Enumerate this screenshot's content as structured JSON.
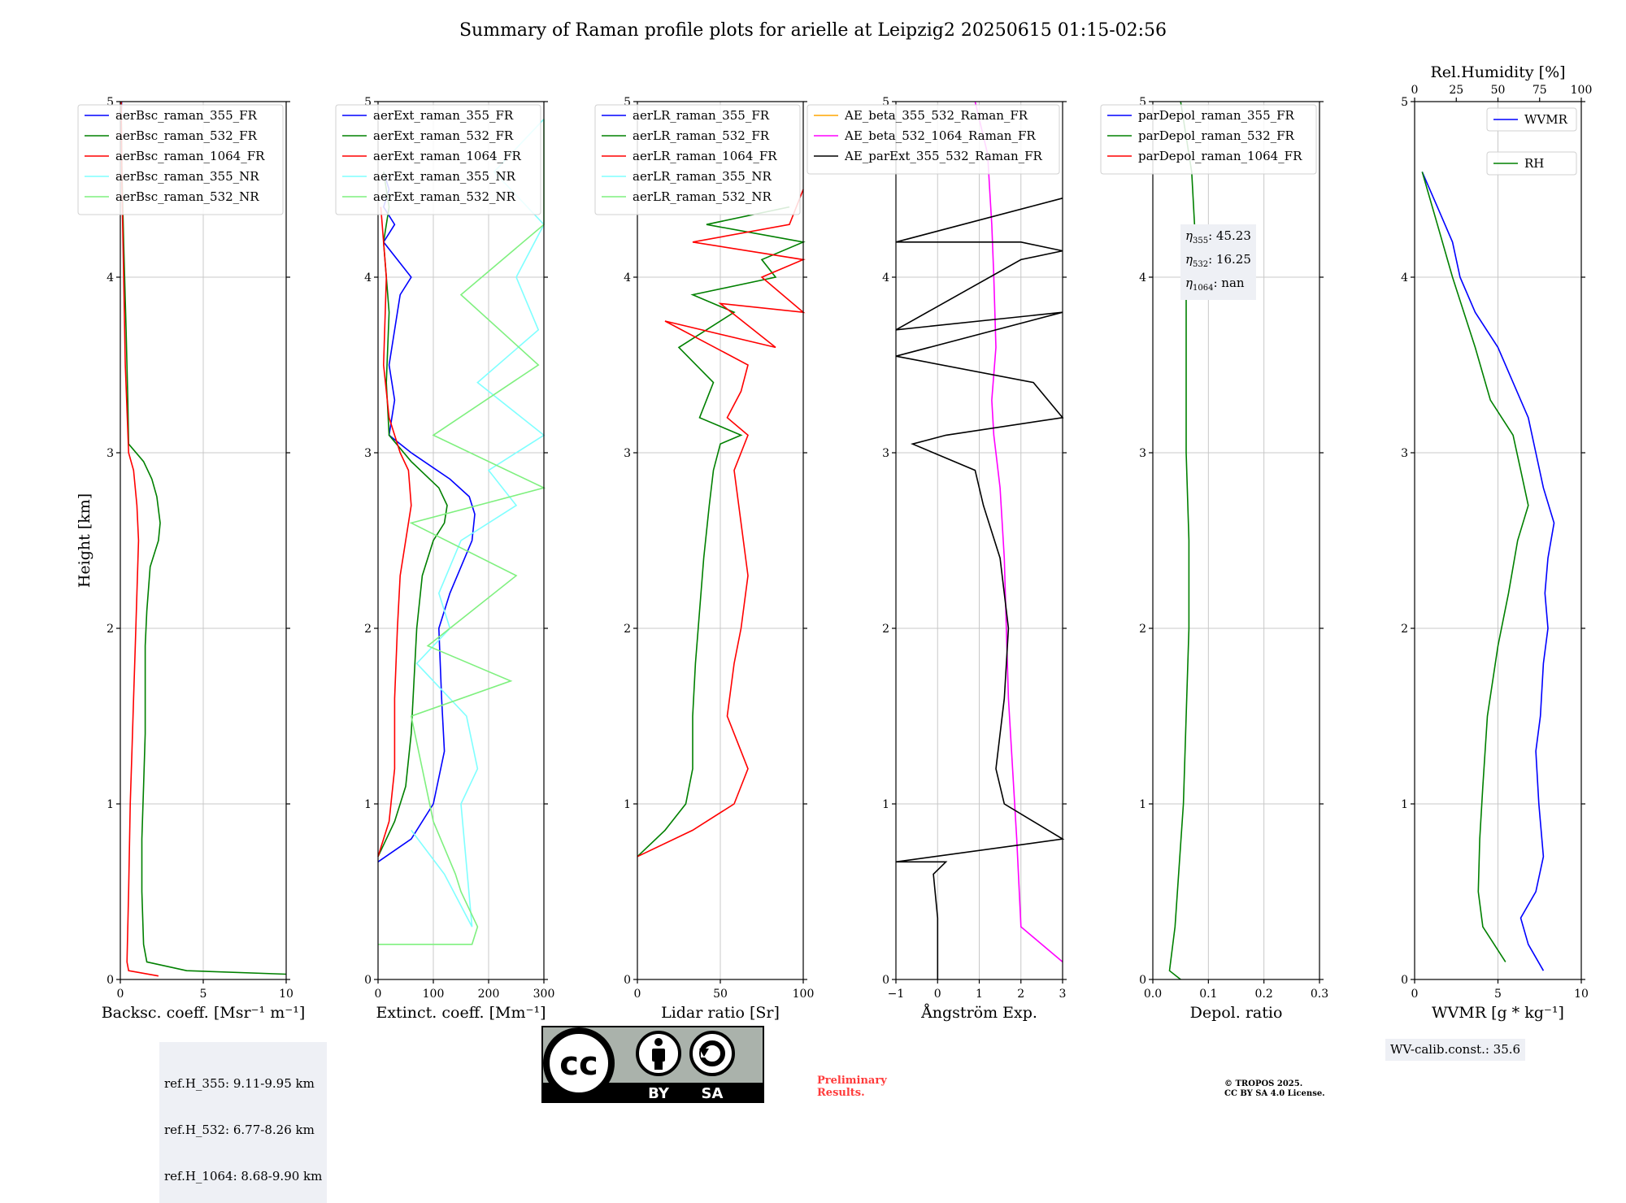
{
  "title": "Summary of Raman profile plots for arielle at Leipzig2 20250615 01:15-02:56",
  "info": {
    "refH": [
      "ref.H_355: 9.11-9.95 km",
      "ref.H_532: 6.77-8.26 km",
      "ref.H_1064: 8.68-9.90 km"
    ],
    "eta": {
      "e355": "45.23",
      "e532": "16.25",
      "e1064": "nan"
    },
    "wv_calib": "WV-calib.const.: 35.6",
    "preliminary": [
      "Preliminary",
      "Results."
    ],
    "copyright": [
      "© TROPOS 2025.",
      "CC BY SA 4.0 License."
    ],
    "cc_logo": {
      "cc": "cc",
      "by": "BY",
      "sa": "SA"
    }
  },
  "colors": {
    "blue": "#0000ff",
    "green": "#008000",
    "red": "#ff0000",
    "cyan": "#7fffff",
    "lightgreen": "#7ff07f",
    "orange": "#ffa500",
    "magenta": "#ff00ff",
    "black": "#000000"
  },
  "chart_data": [
    {
      "type": "line",
      "xlabel": "Backsc. coeff. [Msr⁻¹ m⁻¹]",
      "ylabel": "Height [km]",
      "xlim": [
        0,
        10
      ],
      "ylim": [
        0,
        5
      ],
      "xticks": [
        "0",
        "5",
        "10"
      ],
      "yticks": [
        "0",
        "1",
        "2",
        "3",
        "4",
        "5"
      ],
      "grid": true,
      "legend": "top-right",
      "series": [
        {
          "name": "aerBsc_raman_355_FR",
          "color": "#0000ff",
          "x": [
            0.05,
            0.06,
            0.08
          ],
          "y": [
            4.8,
            4.9,
            5.0
          ]
        },
        {
          "name": "aerBsc_raman_532_FR",
          "color": "#008000",
          "x": [
            10,
            4,
            1.6,
            1.4,
            1.3,
            1.3,
            1.4,
            1.5,
            1.5,
            1.5,
            1.6,
            1.8,
            2.3,
            2.4,
            2.2,
            1.9,
            1.4,
            0.5,
            0.45,
            0.35,
            0.2,
            0.1,
            0.05
          ],
          "y": [
            0.03,
            0.05,
            0.1,
            0.2,
            0.5,
            0.8,
            1.1,
            1.4,
            1.7,
            1.9,
            2.1,
            2.35,
            2.5,
            2.6,
            2.75,
            2.85,
            2.95,
            3.05,
            3.3,
            3.7,
            4.2,
            4.6,
            5.0
          ]
        },
        {
          "name": "aerBsc_raman_1064_FR",
          "color": "#ff0000",
          "x": [
            2.3,
            0.5,
            0.4,
            0.5,
            0.6,
            0.7,
            0.8,
            0.9,
            1.0,
            1.1,
            1.0,
            0.8,
            0.5,
            0.3,
            0.2,
            0.1,
            0.05
          ],
          "y": [
            0.02,
            0.05,
            0.1,
            0.5,
            1.0,
            1.3,
            1.6,
            1.9,
            2.2,
            2.5,
            2.7,
            2.9,
            3.0,
            3.5,
            4.0,
            4.5,
            5.0
          ]
        },
        {
          "name": "aerBsc_raman_355_NR",
          "color": "#7fffff",
          "x": [],
          "y": []
        },
        {
          "name": "aerBsc_raman_532_NR",
          "color": "#7ff07f",
          "x": [],
          "y": []
        }
      ]
    },
    {
      "type": "line",
      "xlabel": "Extinct. coeff. [Mm⁻¹]",
      "xlim": [
        0,
        300
      ],
      "ylim": [
        0,
        5
      ],
      "xticks": [
        "0",
        "100",
        "200",
        "300"
      ],
      "yticks": [
        "0",
        "1",
        "2",
        "3",
        "4",
        "5"
      ],
      "grid": true,
      "legend": "top-right",
      "series": [
        {
          "name": "aerExt_raman_355_FR",
          "color": "#0000ff",
          "x": [
            0,
            60,
            100,
            120,
            115,
            110,
            130,
            150,
            170,
            175,
            165,
            130,
            60,
            20,
            30,
            20,
            40,
            60,
            10,
            30,
            10,
            20,
            10
          ],
          "y": [
            0.67,
            0.8,
            1.0,
            1.3,
            1.6,
            2.0,
            2.2,
            2.35,
            2.5,
            2.65,
            2.75,
            2.85,
            3.0,
            3.1,
            3.3,
            3.5,
            3.9,
            4.0,
            4.2,
            4.3,
            4.4,
            4.5,
            4.6
          ]
        },
        {
          "name": "aerExt_raman_532_FR",
          "color": "#008000",
          "x": [
            0,
            30,
            50,
            60,
            65,
            70,
            80,
            100,
            120,
            125,
            110,
            60,
            20,
            15,
            20,
            10,
            20,
            10
          ],
          "y": [
            0.7,
            0.9,
            1.1,
            1.4,
            1.7,
            2.0,
            2.3,
            2.5,
            2.6,
            2.7,
            2.8,
            2.95,
            3.1,
            3.4,
            3.8,
            4.2,
            4.4,
            4.6
          ]
        },
        {
          "name": "aerExt_raman_1064_FR",
          "color": "#ff0000",
          "x": [
            0,
            20,
            30,
            30,
            35,
            40,
            50,
            60,
            55,
            40,
            20,
            10,
            15,
            5
          ],
          "y": [
            0.7,
            0.9,
            1.2,
            1.6,
            2.0,
            2.3,
            2.5,
            2.7,
            2.9,
            3.0,
            3.2,
            3.5,
            4.0,
            4.4
          ]
        },
        {
          "name": "aerExt_raman_355_NR",
          "color": "#7fffff",
          "x": [
            60,
            120,
            170,
            150,
            180,
            160,
            70,
            130,
            110,
            150,
            250,
            200,
            300,
            180,
            290,
            250,
            300,
            210,
            300
          ],
          "y": [
            0.85,
            0.6,
            0.3,
            1.0,
            1.2,
            1.5,
            1.8,
            2.0,
            2.2,
            2.5,
            2.7,
            2.9,
            3.1,
            3.4,
            3.7,
            4.0,
            4.3,
            4.6,
            4.9
          ]
        },
        {
          "name": "aerExt_raman_532_NR",
          "color": "#7ff07f",
          "x": [
            0,
            170,
            180,
            150,
            140,
            100,
            80,
            60,
            240,
            90,
            250,
            60,
            300,
            100,
            290,
            150,
            300,
            300
          ],
          "y": [
            0.2,
            0.2,
            0.3,
            0.5,
            0.6,
            0.9,
            1.2,
            1.5,
            1.7,
            1.9,
            2.3,
            2.6,
            2.8,
            3.1,
            3.5,
            3.9,
            4.3,
            4.9
          ]
        }
      ]
    },
    {
      "type": "line",
      "xlabel": "Lidar ratio [Sr]",
      "xlim": [
        0,
        120
      ],
      "ylim": [
        0,
        5
      ],
      "xticks": [
        "0",
        "50",
        "100"
      ],
      "yticks": [
        "0",
        "1",
        "2",
        "3",
        "4",
        "5"
      ],
      "grid": true,
      "legend": "top-right",
      "series": [
        {
          "name": "aerLR_raman_355_FR",
          "color": "#0000ff",
          "x": [],
          "y": []
        },
        {
          "name": "aerLR_raman_532_FR",
          "color": "#008000",
          "x": [
            0,
            20,
            35,
            40,
            40,
            42,
            45,
            48,
            52,
            55,
            60,
            75,
            45,
            55,
            30,
            70,
            40,
            100,
            90,
            120,
            50,
            110
          ],
          "y": [
            0.7,
            0.85,
            1.0,
            1.2,
            1.5,
            1.8,
            2.1,
            2.4,
            2.7,
            2.9,
            3.05,
            3.1,
            3.2,
            3.4,
            3.6,
            3.8,
            3.9,
            4.0,
            4.1,
            4.2,
            4.3,
            4.4
          ]
        },
        {
          "name": "aerLR_raman_1064_FR",
          "color": "#ff0000",
          "x": [
            0,
            40,
            70,
            80,
            65,
            70,
            75,
            80,
            75,
            70,
            80,
            65,
            75,
            80,
            20,
            100,
            60,
            120,
            90,
            120,
            40,
            110,
            120
          ],
          "y": [
            0.7,
            0.85,
            1.0,
            1.2,
            1.5,
            1.8,
            2.0,
            2.3,
            2.6,
            2.9,
            3.1,
            3.2,
            3.35,
            3.5,
            3.75,
            3.6,
            3.85,
            3.8,
            4.0,
            4.1,
            4.2,
            4.3,
            4.5
          ]
        },
        {
          "name": "aerLR_raman_355_NR",
          "color": "#7fffff",
          "x": [],
          "y": []
        },
        {
          "name": "aerLR_raman_532_NR",
          "color": "#7ff07f",
          "x": [],
          "y": []
        }
      ]
    },
    {
      "type": "line",
      "xlabel": "Ångström Exp.",
      "xlim": [
        -1,
        3
      ],
      "ylim": [
        0,
        5
      ],
      "xticks": [
        "−1",
        "0",
        "1",
        "2",
        "3"
      ],
      "yticks": [
        "0",
        "1",
        "2",
        "3",
        "4",
        "5"
      ],
      "grid": true,
      "legend": "top-right",
      "series": [
        {
          "name": "AE_beta_355_532_Raman_FR",
          "color": "#ffa500",
          "x": [],
          "y": []
        },
        {
          "name": "AE_beta_532_1064_Raman_FR",
          "color": "#ff00ff",
          "x": [
            3.0,
            2.0,
            1.9,
            1.8,
            1.7,
            1.65,
            1.6,
            1.5,
            1.4,
            1.35,
            1.3,
            1.4,
            1.35,
            1.3,
            1.25,
            1.2,
            1.0,
            0.9
          ],
          "y": [
            0.1,
            0.3,
            0.8,
            1.2,
            1.6,
            2.0,
            2.4,
            2.8,
            3.0,
            3.1,
            3.3,
            3.6,
            4.0,
            4.3,
            4.5,
            4.7,
            4.9,
            5.0
          ]
        },
        {
          "name": "AE_parExt_355_532_Raman_FR",
          "color": "#000000",
          "x": [
            0,
            0,
            -0.1,
            0.2,
            -1,
            3,
            1.6,
            1.4,
            1.6,
            1.7,
            1.5,
            1.1,
            0.9,
            -0.6,
            0.2,
            3,
            2.3,
            -1,
            3,
            -1,
            2,
            3,
            2,
            -1,
            3
          ],
          "y": [
            0,
            0.35,
            0.6,
            0.67,
            0.67,
            0.8,
            1.0,
            1.2,
            1.6,
            2.0,
            2.4,
            2.7,
            2.9,
            3.05,
            3.1,
            3.2,
            3.4,
            3.55,
            3.8,
            3.7,
            4.1,
            4.15,
            4.2,
            4.2,
            4.45
          ]
        }
      ]
    },
    {
      "type": "line",
      "xlabel": "Depol. ratio",
      "xlim": [
        0,
        0.3
      ],
      "ylim": [
        0,
        5
      ],
      "xticks": [
        "0.0",
        "0.1",
        "0.2",
        "0.3"
      ],
      "yticks": [
        "0",
        "1",
        "2",
        "3",
        "4",
        "5"
      ],
      "grid": true,
      "legend": "top-right",
      "series": [
        {
          "name": "parDepol_raman_355_FR",
          "color": "#0000ff",
          "x": [],
          "y": []
        },
        {
          "name": "parDepol_raman_532_FR",
          "color": "#008000",
          "x": [
            0.05,
            0.03,
            0.04,
            0.055,
            0.06,
            0.065,
            0.065,
            0.06,
            0.06,
            0.06,
            0.06,
            0.075,
            0.07,
            0.06,
            0.05
          ],
          "y": [
            0.0,
            0.05,
            0.3,
            1.0,
            1.5,
            2.0,
            2.5,
            3.0,
            3.2,
            3.5,
            3.9,
            4.3,
            4.6,
            4.8,
            5.0
          ]
        },
        {
          "name": "parDepol_raman_1064_FR",
          "color": "#ff0000",
          "x": [],
          "y": []
        }
      ]
    },
    {
      "type": "line",
      "xlabel": "WVMR [g * kg⁻¹]",
      "x2label": "Rel.Humidity [%]",
      "xlim": [
        0,
        11
      ],
      "x2lim": [
        0,
        100
      ],
      "ylim": [
        0,
        5
      ],
      "xticks": [
        "0",
        "5",
        "10"
      ],
      "x2ticks": [
        "0",
        "25",
        "50",
        "75",
        "100"
      ],
      "yticks": [
        "0",
        "1",
        "2",
        "3",
        "4",
        "5"
      ],
      "grid": true,
      "legend": "top-right",
      "series": [
        {
          "name": "WVMR",
          "color": "#0000ff",
          "x": [
            8.5,
            7.5,
            7.0,
            8.0,
            8.5,
            8.2,
            8.0,
            8.3,
            8.5,
            8.8,
            8.6,
            8.8,
            9.2,
            8.5,
            8.0,
            7.5,
            6.5,
            5.5,
            4.0,
            3.0,
            2.5,
            1.5,
            0.5
          ],
          "y": [
            0.05,
            0.2,
            0.35,
            0.5,
            0.7,
            1.0,
            1.3,
            1.5,
            1.8,
            2.0,
            2.2,
            2.4,
            2.6,
            2.8,
            3.0,
            3.2,
            3.4,
            3.6,
            3.8,
            4.0,
            4.2,
            4.4,
            4.6
          ]
        },
        {
          "name": "RH",
          "color": "#008000",
          "x": [
            6.0,
            4.5,
            4.2,
            4.3,
            4.5,
            4.8,
            5.5,
            6.2,
            6.8,
            7.5,
            7.0,
            6.5,
            5.0,
            4.0,
            2.5,
            1.5,
            0.5
          ],
          "y": [
            0.1,
            0.3,
            0.5,
            0.8,
            1.1,
            1.5,
            1.9,
            2.2,
            2.5,
            2.7,
            2.9,
            3.1,
            3.3,
            3.6,
            4.0,
            4.3,
            4.6
          ]
        }
      ]
    }
  ]
}
